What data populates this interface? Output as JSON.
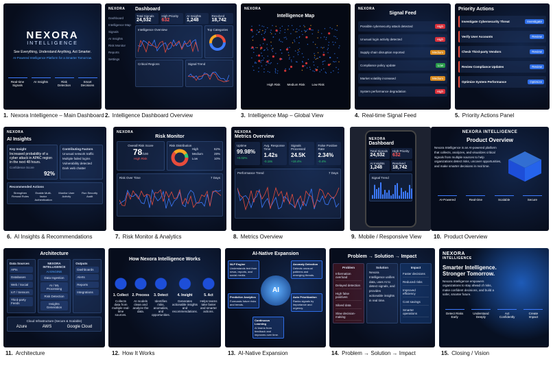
{
  "panels": [
    {
      "number": "1.",
      "caption": "Nexora Intelligence – Main Dashboard",
      "brand": "NEXORA",
      "sub_brand": "INTELLIGENCE",
      "tagline": "See Everything, Understand Anything, Act Smarter.",
      "subtitle": "AI-Powered Intelligence Platform for a Smarter Tomorrow.",
      "features": [
        "Real-time Signals",
        "AI Insights",
        "Risk Detection",
        "Smart Decisions"
      ]
    },
    {
      "number": "2.",
      "caption": "Intelligence Dashboard Overview",
      "brand": "NEXORA",
      "title": "Dashboard",
      "nav": [
        "Dashboard",
        "Intelligence Map",
        "Signals",
        "AI Insights",
        "Risk Monitor",
        "Reports",
        "Settings"
      ],
      "stats": [
        {
          "label": "Total Signals",
          "value": "24,532"
        },
        {
          "label": "High Priority",
          "value": "632"
        },
        {
          "label": "AI Insights",
          "value": "1,248"
        },
        {
          "label": "Resolved",
          "value": "18,742"
        }
      ],
      "overview": "Intelligence Overview",
      "categories": "Top Categories",
      "regions": "Critical Regions",
      "trend": "Signal Trend"
    },
    {
      "number": "3.",
      "caption": "Intelligence Map – Global View",
      "brand": "NEXORA",
      "title": "Intelligence Map",
      "legend": [
        "High Risk",
        "Medium Risk",
        "Low Risk"
      ]
    },
    {
      "number": "4.",
      "caption": "Real-time Signal Feed",
      "brand": "NEXORA",
      "title": "Signal Feed",
      "items": [
        {
          "text": "Possible cybersecurity attack detected",
          "level": "High"
        },
        {
          "text": "Unusual login activity detected",
          "level": "High"
        },
        {
          "text": "Supply chain disruption reported",
          "level": "Medium"
        },
        {
          "text": "Compliance policy update",
          "level": "Low"
        },
        {
          "text": "Market volatility increased",
          "level": "Medium"
        },
        {
          "text": "System performance degradation",
          "level": "High"
        }
      ]
    },
    {
      "number": "5.",
      "caption": "Priority Actions Panel",
      "title": "Priority Actions",
      "items": [
        {
          "title": "Investigate Cybersecurity Threat",
          "action": "Investigate"
        },
        {
          "title": "Verify User Accounts",
          "action": "Review"
        },
        {
          "title": "Check Third-party Vendors",
          "action": "Review"
        },
        {
          "title": "Review Compliance Updates",
          "action": "Review"
        },
        {
          "title": "Optimize System Performance",
          "action": "Optimize"
        }
      ]
    },
    {
      "number": "6.",
      "caption": "AI Insights & Recommendations",
      "brand": "NEXORA",
      "title": "AI Insights",
      "key_label": "Key Insight",
      "key_text": "Increased probability of a cyber attack in APAC region in the next 48 hours.",
      "confidence_label": "Confidence Score",
      "confidence": "92%",
      "factors_title": "Contributing Factors",
      "factors": [
        "Unusual network traffic",
        "Multiple failed logins",
        "Vulnerability detected",
        "Dark web chatter"
      ],
      "actions_title": "Recommended Actions",
      "actions": [
        "Strengthen Firewall Rules",
        "Enable Multi-factor Authentication",
        "Monitor User Activity",
        "Run Security Audit"
      ]
    },
    {
      "number": "7.",
      "caption": "Risk Monitor & Analytics",
      "brand": "NEXORA",
      "title": "Risk Monitor",
      "score_title": "Overall Risk Score",
      "score": "78",
      "score_max": "/100",
      "score_level": "High Risk",
      "dist_title": "Risk Distribution",
      "dist": [
        {
          "label": "High",
          "value": "62%"
        },
        {
          "label": "Medium",
          "value": "28%"
        },
        {
          "label": "Low",
          "value": "10%"
        }
      ],
      "time_title": "Risk Over Time",
      "range": "7 Days"
    },
    {
      "number": "8.",
      "caption": "Metrics Overview",
      "brand": "NEXORA",
      "title": "Metrics Overview",
      "metrics": [
        {
          "label": "Uptime",
          "value": "99.98%",
          "change": "+0.02%"
        },
        {
          "label": "Avg. Response Time",
          "value": "1.42s",
          "change": "-0.18s"
        },
        {
          "label": "Signals Processed",
          "value": "24.5K",
          "change": "+18.4%"
        },
        {
          "label": "False Positive Rate",
          "value": "2.34%",
          "change": "-0.4%"
        }
      ],
      "trend": "Performance Trend",
      "range": "7 Days"
    },
    {
      "number": "9.",
      "caption": "Mobile / Responsive View",
      "brand": "NEXORA",
      "title": "Dashboard",
      "stats": [
        {
          "label": "Total Signals",
          "value": "24,532"
        },
        {
          "label": "High Priority",
          "value": "632"
        },
        {
          "label": "AI Insights",
          "value": "1,248"
        },
        {
          "label": "Resolved",
          "value": "18,742"
        }
      ],
      "trend": "Signal Trend"
    },
    {
      "number": "10.",
      "caption": "Product Overview",
      "brand": "NEXORA INTELLIGENCE",
      "title": "Product Overview",
      "text": "Nexora Intelligence is an AI-powered platform that collects, analyzes, and visualizes critical signals from multiple sources to help organizations detect risks, uncover opportunities, and make smarter decisions in real time.",
      "features": [
        "AI-Powered",
        "Real-time",
        "Scalable",
        "Secure"
      ]
    },
    {
      "number": "11.",
      "caption": "Architecture",
      "title": "Architecture",
      "sources_title": "Data Sources",
      "sources": [
        "APIs",
        "Databases",
        "Web / Social",
        "IoT / Sensors",
        "Third-party Feeds"
      ],
      "engine_title": "NEXORA INTELLIGENCE",
      "engine_sub": "AI ENGINE",
      "engine": [
        "Data Ingestion",
        "AI / ML Processing",
        "Risk Detection",
        "Insights Generation"
      ],
      "outputs_title": "Outputs",
      "outputs": [
        "Dashboards",
        "Alerts",
        "Reports",
        "Integrations"
      ],
      "cloud_title": "Cloud Infrastructure (Secure & Scalable)",
      "clouds": [
        "Azure",
        "AWS",
        "Google Cloud"
      ]
    },
    {
      "number": "12.",
      "caption": "How It Works",
      "title": "How Nexora Intelligence Works",
      "steps": [
        {
          "title": "1. Collect",
          "text": "Collects data from multiple real-time sources."
        },
        {
          "title": "2. Process",
          "text": "AI models clean and analyze the data."
        },
        {
          "title": "3. Detect",
          "text": "Identifies risks, anomalies, and opportunities."
        },
        {
          "title": "4. Insight",
          "text": "Generates actionable insights and recommendations."
        },
        {
          "title": "5. Act",
          "text": "Helps teams take faster and smarter actions."
        }
      ]
    },
    {
      "number": "13.",
      "caption": "AI-Native Expansion",
      "title": "AI-Native Expansion",
      "center": "AI",
      "nodes": [
        {
          "title": "NLP Engine",
          "text": "Understands text from news, reports, and social media."
        },
        {
          "title": "Anomaly Detection",
          "text": "Detects unusual patterns and emerging threats."
        },
        {
          "title": "Predictive Analytics",
          "text": "Forecasts future risks and trends."
        },
        {
          "title": "Auto Prioritization",
          "text": "Ranks signals by importance and urgency."
        },
        {
          "title": "Continuous Learning",
          "text": "AI learns from feedback and improves over time."
        }
      ]
    },
    {
      "number": "14.",
      "caption": "Problem → Solution → Impact",
      "title": "Problem → Solution → Impact",
      "problem_title": "Problem",
      "problems": [
        "Information overload",
        "Delayed detection",
        "High false positives",
        "Siloed data",
        "Slow decision-making"
      ],
      "solution_title": "Solution",
      "solution": "Nexora Intelligence unifies data, uses AI to detect signals, and provides actionable insights in real time.",
      "impact_title": "Impact",
      "impacts": [
        "Faster decisions",
        "Reduced risks",
        "Improved efficiency",
        "Cost savings",
        "Smarter operations"
      ]
    },
    {
      "number": "15.",
      "caption": "Closing / Vision",
      "brand": "NEXORA",
      "sub_brand": "INTELLIGENCE",
      "headline": "Smarter Intelligence. Stronger Tomorrow.",
      "text": "Nexora Intelligence empowers organizations to stay ahead of risks, make confident decisions, and build a safer, smarter future.",
      "items": [
        "Detect Risks Early",
        "Understand Deeply",
        "Act Confidently",
        "Create Impact"
      ]
    }
  ]
}
